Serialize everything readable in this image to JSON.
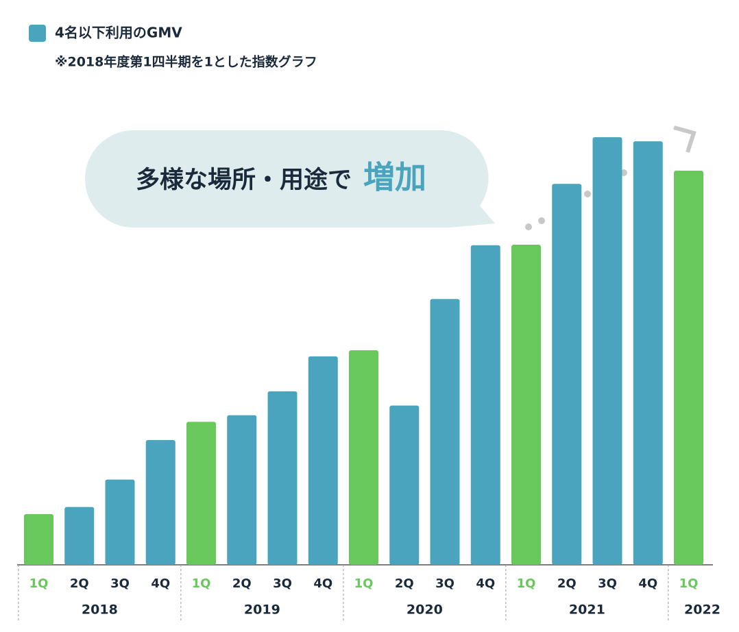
{
  "chart_data": {
    "type": "bar",
    "subtitle": "※2018年度第1四半期を1とした指数グラフ",
    "annotation": {
      "text": "多様な場所・用途で",
      "highlight": "増加"
    },
    "groups": [
      {
        "name": "2018",
        "categories": [
          "1Q",
          "2Q",
          "3Q",
          "4Q"
        ]
      },
      {
        "name": "2019",
        "categories": [
          "1Q",
          "2Q",
          "3Q",
          "4Q"
        ]
      },
      {
        "name": "2020",
        "categories": [
          "1Q",
          "2Q",
          "3Q",
          "4Q"
        ]
      },
      {
        "name": "2021",
        "categories": [
          "1Q",
          "2Q",
          "3Q",
          "4Q"
        ]
      },
      {
        "name": "2022",
        "categories": [
          "1Q"
        ]
      }
    ],
    "series": [
      {
        "name": "4名以下利用のGMV",
        "color": "#4aa4bd",
        "values": [
          1.0,
          1.14,
          1.68,
          2.46,
          2.82,
          2.95,
          3.42,
          4.11,
          4.23,
          3.14,
          5.24,
          6.3,
          6.31,
          7.51,
          8.43,
          8.35,
          7.77
        ],
        "colors": [
          "#68c85c",
          "#4aa4bd",
          "#4aa4bd",
          "#4aa4bd",
          "#68c85c",
          "#4aa4bd",
          "#4aa4bd",
          "#4aa4bd",
          "#68c85c",
          "#4aa4bd",
          "#4aa4bd",
          "#4aa4bd",
          "#68c85c",
          "#4aa4bd",
          "#4aa4bd",
          "#4aa4bd",
          "#68c85c"
        ]
      }
    ],
    "ylim": [
      0,
      8.6
    ]
  }
}
